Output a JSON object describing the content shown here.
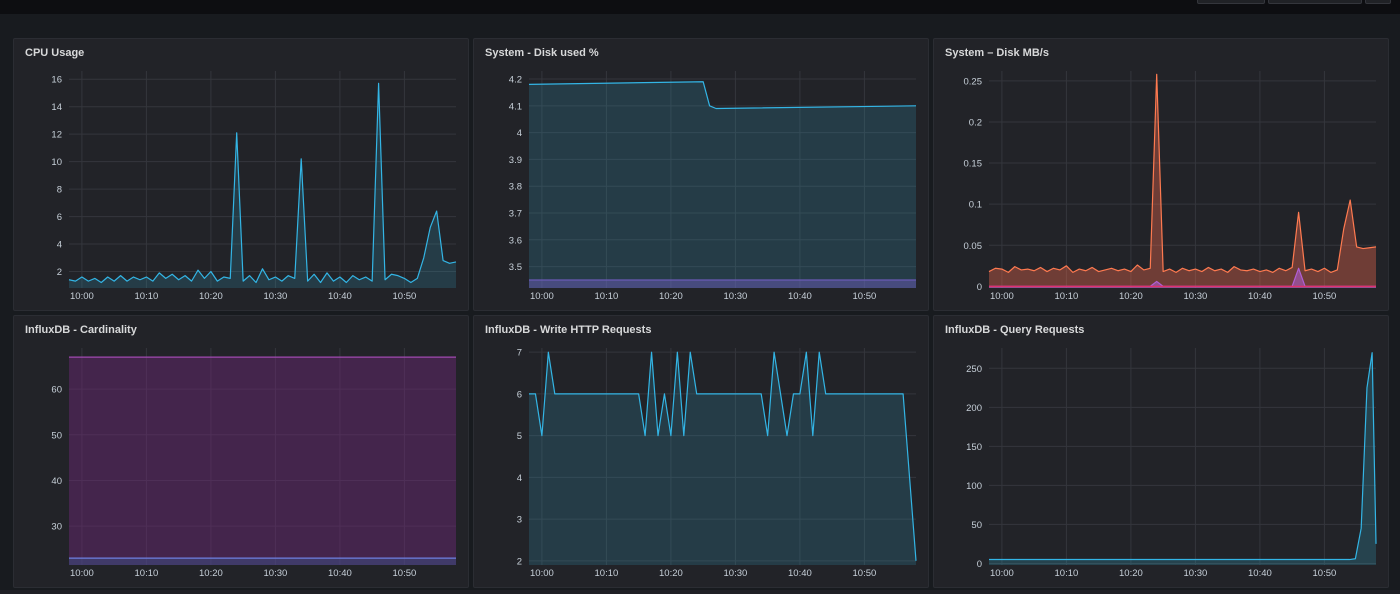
{
  "chart_data": [
    {
      "id": "cpu",
      "type": "area",
      "title": "CPU Usage",
      "x_ticks": [
        "10:00",
        "10:10",
        "10:20",
        "10:30",
        "10:40",
        "10:50"
      ],
      "y_ticks": [
        "2",
        "4",
        "6",
        "8",
        "10",
        "12",
        "14",
        "16"
      ],
      "xlim": [
        0,
        60
      ],
      "ylim": [
        0.8,
        16.6
      ],
      "grid": true,
      "series": [
        {
          "color": "#33b5e5",
          "fill": "rgba(51,150,180,0.22)",
          "x": [
            0,
            1,
            2,
            3,
            4,
            5,
            6,
            7,
            8,
            9,
            10,
            11,
            12,
            13,
            14,
            15,
            16,
            17,
            18,
            19,
            20,
            21,
            22,
            23,
            24,
            25,
            26,
            27,
            28,
            29,
            30,
            31,
            32,
            33,
            34,
            35,
            36,
            37,
            38,
            39,
            40,
            41,
            42,
            43,
            44,
            45,
            46,
            47,
            48,
            49,
            50,
            51,
            52,
            53,
            54,
            55,
            56,
            57,
            58,
            59,
            60
          ],
          "y": [
            1.4,
            1.3,
            1.6,
            1.3,
            1.5,
            1.2,
            1.6,
            1.3,
            1.7,
            1.3,
            1.6,
            1.4,
            1.6,
            1.3,
            1.9,
            1.5,
            1.8,
            1.4,
            1.7,
            1.3,
            2.1,
            1.5,
            2.0,
            1.3,
            1.6,
            1.5,
            12.1,
            1.3,
            1.7,
            1.2,
            2.2,
            1.4,
            1.6,
            1.3,
            1.7,
            1.5,
            10.2,
            1.3,
            1.8,
            1.2,
            1.9,
            1.3,
            1.6,
            1.2,
            1.7,
            1.4,
            1.6,
            1.3,
            15.7,
            1.4,
            1.8,
            1.7,
            1.5,
            1.2,
            1.5,
            3.0,
            5.2,
            6.4,
            2.8,
            2.6,
            2.7
          ]
        }
      ]
    },
    {
      "id": "disk-used",
      "type": "area",
      "title": "System - Disk used %",
      "x_ticks": [
        "10:00",
        "10:10",
        "10:20",
        "10:30",
        "10:40",
        "10:50"
      ],
      "y_ticks": [
        "3.5",
        "3.6",
        "3.7",
        "3.8",
        "3.9",
        "4",
        "4.1",
        "4.2"
      ],
      "xlim": [
        0,
        60
      ],
      "ylim": [
        3.42,
        4.23
      ],
      "grid": true,
      "series": [
        {
          "color": "#7a4ab5",
          "fill": "rgba(122,74,181,0.5)",
          "x": [
            0,
            60
          ],
          "y": [
            3.45,
            3.45
          ]
        },
        {
          "color": "#33b5e5",
          "fill": "rgba(51,150,180,0.22)",
          "x": [
            0,
            27,
            28,
            29,
            60
          ],
          "y": [
            4.18,
            4.19,
            4.1,
            4.09,
            4.1
          ]
        }
      ]
    },
    {
      "id": "disk-mbs",
      "type": "area",
      "title": "System – Disk MB/s",
      "x_ticks": [
        "10:00",
        "10:10",
        "10:20",
        "10:30",
        "10:40",
        "10:50"
      ],
      "y_ticks": [
        "0",
        "0.05",
        "0.1",
        "0.15",
        "0.2",
        "0.25"
      ],
      "xlim": [
        0,
        60
      ],
      "ylim": [
        -0.002,
        0.262
      ],
      "grid": true,
      "series": [
        {
          "color": "#ff7a50",
          "fill": "rgba(255,112,80,0.35)",
          "x": [
            0,
            1,
            2,
            3,
            4,
            5,
            6,
            7,
            8,
            9,
            10,
            11,
            12,
            13,
            14,
            15,
            16,
            17,
            18,
            19,
            20,
            21,
            22,
            23,
            24,
            25,
            26,
            27,
            28,
            29,
            30,
            31,
            32,
            33,
            34,
            35,
            36,
            37,
            38,
            39,
            40,
            41,
            42,
            43,
            44,
            45,
            46,
            47,
            48,
            49,
            50,
            51,
            52,
            53,
            54,
            55,
            56,
            57,
            58,
            59,
            60
          ],
          "y": [
            0.018,
            0.022,
            0.021,
            0.017,
            0.024,
            0.02,
            0.021,
            0.019,
            0.023,
            0.018,
            0.022,
            0.02,
            0.025,
            0.017,
            0.021,
            0.019,
            0.023,
            0.018,
            0.02,
            0.022,
            0.019,
            0.021,
            0.018,
            0.026,
            0.02,
            0.022,
            0.258,
            0.018,
            0.021,
            0.017,
            0.022,
            0.019,
            0.021,
            0.018,
            0.023,
            0.019,
            0.021,
            0.017,
            0.024,
            0.02,
            0.019,
            0.021,
            0.018,
            0.02,
            0.017,
            0.022,
            0.019,
            0.023,
            0.09,
            0.019,
            0.021,
            0.018,
            0.022,
            0.017,
            0.02,
            0.07,
            0.105,
            0.048,
            0.046,
            0.047,
            0.048
          ]
        },
        {
          "color": "#b05fd6",
          "fill": "rgba(176,95,214,0.55)",
          "x": [
            0,
            25,
            26,
            27,
            47,
            48,
            49,
            60
          ],
          "y": [
            0.0,
            0.0,
            0.006,
            0.0,
            0.0,
            0.022,
            0.0,
            0.0
          ]
        },
        {
          "color": "#e0306f",
          "fill": "none",
          "x": [
            0,
            60
          ],
          "y": [
            0.0,
            0.0
          ]
        }
      ]
    },
    {
      "id": "cardinality",
      "type": "area",
      "title": "InfluxDB - Cardinality",
      "x_ticks": [
        "10:00",
        "10:10",
        "10:20",
        "10:30",
        "10:40",
        "10:50"
      ],
      "y_ticks": [
        "30",
        "40",
        "50",
        "60"
      ],
      "xlim": [
        0,
        60
      ],
      "ylim": [
        21.5,
        69.0
      ],
      "grid": true,
      "series": [
        {
          "color": "#a04ab0",
          "fill": "rgba(110,40,120,0.45)",
          "x": [
            0,
            60
          ],
          "y": [
            67,
            67
          ]
        },
        {
          "color": "#6e7fe0",
          "fill": "rgba(60,90,150,0.4)",
          "x": [
            0,
            60
          ],
          "y": [
            23,
            23
          ]
        }
      ]
    },
    {
      "id": "write-http",
      "type": "area",
      "title": "InfluxDB - Write HTTP Requests",
      "x_ticks": [
        "10:00",
        "10:10",
        "10:20",
        "10:30",
        "10:40",
        "10:50"
      ],
      "y_ticks": [
        "2",
        "3",
        "4",
        "5",
        "6",
        "7"
      ],
      "xlim": [
        0,
        60
      ],
      "ylim": [
        1.9,
        7.1
      ],
      "grid": true,
      "series": [
        {
          "color": "#33b5e5",
          "fill": "rgba(51,150,180,0.22)",
          "x": [
            0,
            1,
            2,
            3,
            4,
            5,
            6,
            7,
            8,
            9,
            10,
            11,
            12,
            13,
            14,
            15,
            16,
            17,
            18,
            19,
            20,
            21,
            22,
            23,
            24,
            25,
            26,
            27,
            28,
            29,
            30,
            31,
            32,
            33,
            34,
            35,
            36,
            37,
            38,
            39,
            40,
            41,
            42,
            43,
            44,
            45,
            46,
            47,
            48,
            49,
            50,
            51,
            52,
            53,
            54,
            55,
            56,
            57,
            58,
            59,
            60
          ],
          "y": [
            6,
            6,
            5,
            7,
            6,
            6,
            6,
            6,
            6,
            6,
            6,
            6,
            6,
            6,
            6,
            6,
            6,
            6,
            5,
            7,
            5,
            6,
            5,
            7,
            5,
            7,
            6,
            6,
            6,
            6,
            6,
            6,
            6,
            6,
            6,
            6,
            6,
            5,
            7,
            6,
            5,
            6,
            6,
            7,
            5,
            7,
            6,
            6,
            6,
            6,
            6,
            6,
            6,
            6,
            6,
            6,
            6,
            6,
            6,
            4,
            2
          ]
        }
      ]
    },
    {
      "id": "query-req",
      "type": "area",
      "title": "InfluxDB - Query Requests",
      "x_ticks": [
        "10:00",
        "10:10",
        "10:20",
        "10:30",
        "10:40",
        "10:50"
      ],
      "y_ticks": [
        "0",
        "50",
        "100",
        "150",
        "200",
        "250"
      ],
      "xlim": [
        0,
        60
      ],
      "ylim": [
        -2,
        276
      ],
      "grid": true,
      "series": [
        {
          "color": "#33b5e5",
          "fill": "rgba(51,150,180,0.28)",
          "x": [
            0,
            55,
            55.9,
            56.8,
            57.7,
            58.6,
            59.4,
            60
          ],
          "y": [
            5,
            5,
            5,
            6,
            45,
            225,
            270,
            25
          ]
        }
      ]
    }
  ]
}
